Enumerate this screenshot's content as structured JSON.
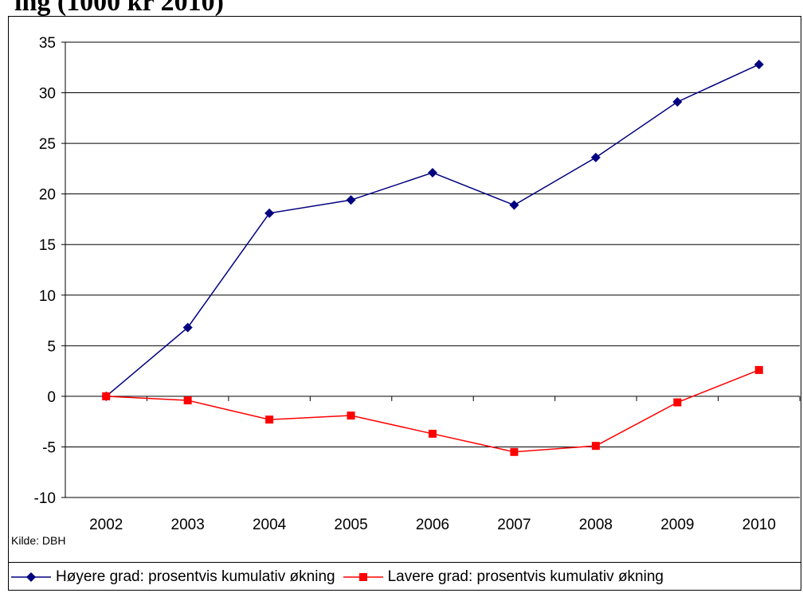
{
  "header_text": "ing  (1000 kr 2010)",
  "source_note": "Kilde: DBH",
  "chart_data": {
    "type": "line",
    "title": "",
    "xlabel": "",
    "ylabel": "",
    "categories": [
      "2002",
      "2003",
      "2004",
      "2005",
      "2006",
      "2007",
      "2008",
      "2009",
      "2010"
    ],
    "ylim": [
      -10,
      35
    ],
    "yticks": [
      -10,
      -5,
      0,
      5,
      10,
      15,
      20,
      25,
      30,
      35
    ],
    "grid": "horizontal",
    "legend_position": "bottom",
    "series": [
      {
        "name": "Høyere grad: prosentvis kumulativ økning",
        "color": "#000080",
        "marker": "diamond",
        "values": [
          0,
          6.8,
          18.1,
          19.4,
          22.1,
          18.9,
          23.6,
          29.1,
          32.8
        ]
      },
      {
        "name": "Lavere grad: prosentvis kumulativ økning",
        "color": "#ff0000",
        "marker": "square",
        "values": [
          0,
          -0.4,
          -2.3,
          -1.9,
          -3.7,
          -5.5,
          -4.9,
          -0.6,
          2.6
        ]
      }
    ]
  }
}
